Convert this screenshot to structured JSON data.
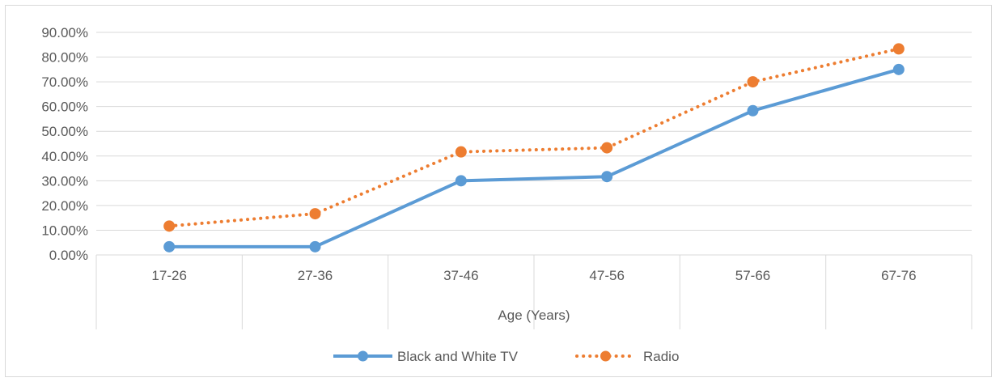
{
  "chart_data": {
    "type": "line",
    "categories": [
      "17-26",
      "27-36",
      "37-46",
      "47-56",
      "57-66",
      "67-76"
    ],
    "series": [
      {
        "name": "Black and White TV",
        "values": [
          3.33,
          3.33,
          30.0,
          31.67,
          58.33,
          75.0
        ],
        "color": "#5b9bd5",
        "style": "solid",
        "marker": "circle"
      },
      {
        "name": "Radio",
        "values": [
          11.67,
          16.67,
          41.67,
          43.33,
          70.0,
          83.33
        ],
        "color": "#ed7d31",
        "style": "dotted",
        "marker": "circle"
      }
    ],
    "xlabel": "Age (Years)",
    "ylabel": "",
    "ylim": [
      0,
      90
    ],
    "yticks": [
      "0.00%",
      "10.00%",
      "20.00%",
      "30.00%",
      "40.00%",
      "50.00%",
      "60.00%",
      "70.00%",
      "80.00%",
      "90.00%"
    ],
    "grid": true,
    "legend": "bottom"
  }
}
